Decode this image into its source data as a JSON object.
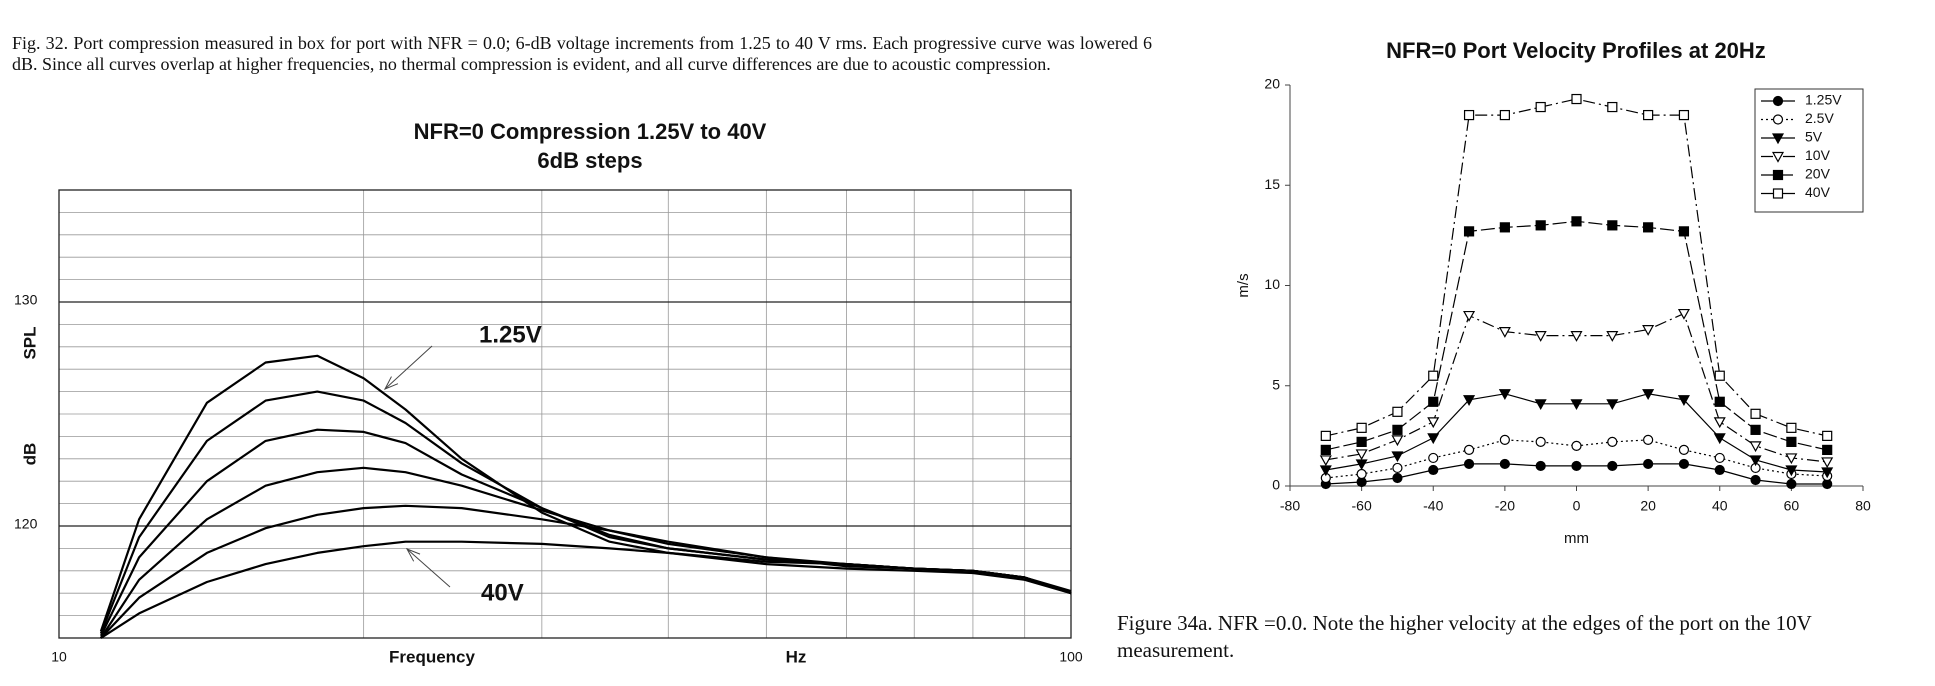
{
  "left_caption": "Fig. 32. Port compression measured in box for port with NFR = 0.0; 6-dB voltage increments from 1.25 to 40 V rms. Each progressive curve was lowered 6 dB. Since all curves overlap at higher frequencies, no thermal compression is evident, and all curve differences are due to acoustic compression.",
  "right_caption": "Figure 34a. NFR =0.0. Note the higher velocity at the edges of the port on the 10V measurement.",
  "chart_data": [
    {
      "type": "line",
      "title": "NFR=0 Compression 1.25V to 40V",
      "subtitle": "6dB steps",
      "xlabel": "Frequency",
      "xunit": "Hz",
      "ylabel": "SPL",
      "yunit": "dB",
      "xscale": "log",
      "xlim": [
        10,
        100
      ],
      "xticks": [
        10,
        100
      ],
      "minor_xticks": [
        20,
        30,
        40,
        50,
        60,
        70,
        80,
        90
      ],
      "ylim": [
        115,
        135
      ],
      "yticks": [
        120,
        130
      ],
      "minor_yticks": [
        116,
        117,
        118,
        119,
        121,
        122,
        123,
        124,
        125,
        126,
        127,
        128,
        129,
        131,
        132,
        133,
        134
      ],
      "grid": true,
      "x": [
        11,
        12,
        14,
        16,
        18,
        20,
        22,
        25,
        30,
        35,
        40,
        50,
        60,
        70,
        80,
        90,
        100
      ],
      "series": [
        {
          "color": "#000000",
          "values": [
            115.3,
            120.3,
            125.5,
            127.3,
            127.6,
            126.6,
            125.2,
            123.0,
            120.6,
            119.3,
            118.8,
            118.4,
            118.3,
            118.1,
            118.0,
            117.7,
            117.0
          ]
        },
        {
          "color": "#000000",
          "values": [
            115.2,
            119.5,
            123.8,
            125.6,
            126.0,
            125.6,
            124.6,
            122.8,
            120.8,
            119.5,
            119.0,
            118.5,
            118.3,
            118.1,
            118.0,
            117.7,
            117.0
          ]
        },
        {
          "color": "#000000",
          "values": [
            115.1,
            118.6,
            122.0,
            123.8,
            124.3,
            124.2,
            123.7,
            122.3,
            120.8,
            119.6,
            119.0,
            118.5,
            118.3,
            118.1,
            118.0,
            117.7,
            117.0
          ]
        },
        {
          "color": "#000000",
          "values": [
            115.0,
            117.6,
            120.3,
            121.8,
            122.4,
            122.6,
            122.4,
            121.8,
            120.7,
            119.8,
            119.2,
            118.6,
            118.3,
            118.1,
            118.0,
            117.7,
            117.0
          ]
        },
        {
          "color": "#000000",
          "values": [
            115.0,
            116.8,
            118.8,
            119.9,
            120.5,
            120.8,
            120.9,
            120.8,
            120.3,
            119.8,
            119.3,
            118.6,
            118.2,
            118.1,
            118.0,
            117.7,
            117.1
          ]
        },
        {
          "color": "#000000",
          "values": [
            115.0,
            116.1,
            117.5,
            118.3,
            118.8,
            119.1,
            119.3,
            119.3,
            119.2,
            119.0,
            118.8,
            118.3,
            118.1,
            118.0,
            117.9,
            117.6,
            117.0
          ]
        }
      ],
      "annotations": [
        {
          "text": "1.25V"
        },
        {
          "text": "40V"
        }
      ]
    },
    {
      "type": "line",
      "title": "NFR=0 Port Velocity Profiles at 20Hz",
      "xlabel": "mm",
      "ylabel": "m/s",
      "xlim": [
        -80,
        80
      ],
      "xticks": [
        -80,
        -60,
        -40,
        -20,
        0,
        20,
        40,
        60,
        80
      ],
      "ylim": [
        0,
        20
      ],
      "yticks": [
        0,
        5,
        10,
        15,
        20
      ],
      "grid": false,
      "legend": "upper right",
      "x": [
        -70,
        -60,
        -50,
        -40,
        -30,
        -20,
        -10,
        0,
        10,
        20,
        30,
        40,
        50,
        60,
        70
      ],
      "series": [
        {
          "name": "1.25V",
          "color": "#000000",
          "marker": "circle",
          "filled": true,
          "dash": "solid",
          "values": [
            0.1,
            0.2,
            0.4,
            0.8,
            1.1,
            1.1,
            1.0,
            1.0,
            1.0,
            1.1,
            1.1,
            0.8,
            0.3,
            0.1,
            0.1
          ]
        },
        {
          "name": "2.5V",
          "color": "#000000",
          "marker": "circle",
          "filled": false,
          "dash": "dotted",
          "values": [
            0.4,
            0.6,
            0.9,
            1.4,
            1.8,
            2.3,
            2.2,
            2.0,
            2.2,
            2.3,
            1.8,
            1.4,
            0.9,
            0.6,
            0.5
          ]
        },
        {
          "name": "5V",
          "color": "#000000",
          "marker": "triangle-down",
          "filled": true,
          "dash": "solid",
          "values": [
            0.8,
            1.1,
            1.5,
            2.4,
            4.3,
            4.6,
            4.1,
            4.1,
            4.1,
            4.6,
            4.3,
            2.4,
            1.3,
            0.8,
            0.7
          ]
        },
        {
          "name": "10V",
          "color": "#000000",
          "marker": "triangle-down",
          "filled": false,
          "dash": "dashdot",
          "values": [
            1.3,
            1.6,
            2.3,
            3.2,
            8.5,
            7.7,
            7.5,
            7.5,
            7.5,
            7.8,
            8.6,
            3.2,
            2.0,
            1.4,
            1.2
          ]
        },
        {
          "name": "20V",
          "color": "#000000",
          "marker": "square",
          "filled": true,
          "dash": "dashed",
          "values": [
            1.8,
            2.2,
            2.8,
            4.2,
            12.7,
            12.9,
            13.0,
            13.2,
            13.0,
            12.9,
            12.7,
            4.2,
            2.8,
            2.2,
            1.8
          ]
        },
        {
          "name": "40V",
          "color": "#000000",
          "marker": "square",
          "filled": false,
          "dash": "dashdot",
          "values": [
            2.5,
            2.9,
            3.7,
            5.5,
            18.5,
            18.5,
            18.9,
            19.3,
            18.9,
            18.5,
            18.5,
            5.5,
            3.6,
            2.9,
            2.5
          ]
        }
      ]
    }
  ]
}
